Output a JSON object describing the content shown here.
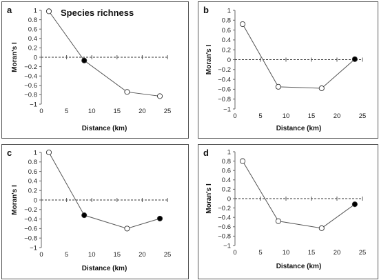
{
  "chart_data": [
    {
      "panel": "a",
      "title": "Species richness",
      "type": "line",
      "xlabel": "Distance (km)",
      "ylabel": "Moran's I",
      "xlim": [
        0,
        25
      ],
      "ylim": [
        -1,
        1
      ],
      "xticks": [
        "0",
        "5",
        "10",
        "15",
        "20",
        "25"
      ],
      "yticks": [
        "1",
        "0.8",
        "0.6",
        "0.4",
        "0.2",
        "0",
        "−0.2",
        "−0.4",
        "−0.6",
        "−0.8",
        "−1"
      ],
      "points": [
        {
          "x": 1.5,
          "y": 0.98,
          "filled": false
        },
        {
          "x": 8.5,
          "y": -0.07,
          "filled": true
        },
        {
          "x": 17.0,
          "y": -0.74,
          "filled": false
        },
        {
          "x": 23.5,
          "y": -0.83,
          "filled": false
        }
      ]
    },
    {
      "panel": "b",
      "title": "",
      "type": "line",
      "xlabel": "Distance (km)",
      "ylabel": "Moran's I",
      "xlim": [
        0,
        25
      ],
      "ylim": [
        -1,
        1
      ],
      "xticks": [
        "0",
        "5",
        "10",
        "15",
        "20",
        "25"
      ],
      "yticks": [
        "1",
        "0.8",
        "0.6",
        "0.4",
        "0.2",
        "0",
        "−0.2",
        "−0.4",
        "−0.6",
        "−0.8",
        "−1"
      ],
      "points": [
        {
          "x": 1.5,
          "y": 0.72,
          "filled": false
        },
        {
          "x": 8.5,
          "y": -0.55,
          "filled": false
        },
        {
          "x": 17.0,
          "y": -0.58,
          "filled": false
        },
        {
          "x": 23.5,
          "y": 0.01,
          "filled": true
        }
      ]
    },
    {
      "panel": "c",
      "title": "",
      "type": "line",
      "xlabel": "Distance (km)",
      "ylabel": "Moran's I",
      "xlim": [
        0,
        25
      ],
      "ylim": [
        -1,
        1
      ],
      "xticks": [
        "0",
        "5",
        "10",
        "15",
        "20",
        "25"
      ],
      "yticks": [
        "1",
        "0.8",
        "0.6",
        "0.4",
        "0.2",
        "0",
        "−0.2",
        "−0.4",
        "−0.6",
        "−0.8",
        "−1"
      ],
      "points": [
        {
          "x": 1.5,
          "y": 1.0,
          "filled": false
        },
        {
          "x": 8.5,
          "y": -0.32,
          "filled": true
        },
        {
          "x": 17.0,
          "y": -0.6,
          "filled": false
        },
        {
          "x": 23.5,
          "y": -0.39,
          "filled": true
        }
      ]
    },
    {
      "panel": "d",
      "title": "",
      "type": "line",
      "xlabel": "Distance (km)",
      "ylabel": "Moran's I",
      "xlim": [
        0,
        25
      ],
      "ylim": [
        -1,
        1
      ],
      "xticks": [
        "0",
        "5",
        "10",
        "15",
        "20",
        "25"
      ],
      "yticks": [
        "1",
        "0.8",
        "0.6",
        "0.4",
        "0.2",
        "0",
        "−0.2",
        "−0.4",
        "−0.6",
        "−0.8",
        "−1"
      ],
      "points": [
        {
          "x": 1.5,
          "y": 0.8,
          "filled": false
        },
        {
          "x": 8.5,
          "y": -0.48,
          "filled": false
        },
        {
          "x": 17.0,
          "y": -0.63,
          "filled": false
        },
        {
          "x": 23.5,
          "y": -0.12,
          "filled": true
        }
      ]
    }
  ]
}
